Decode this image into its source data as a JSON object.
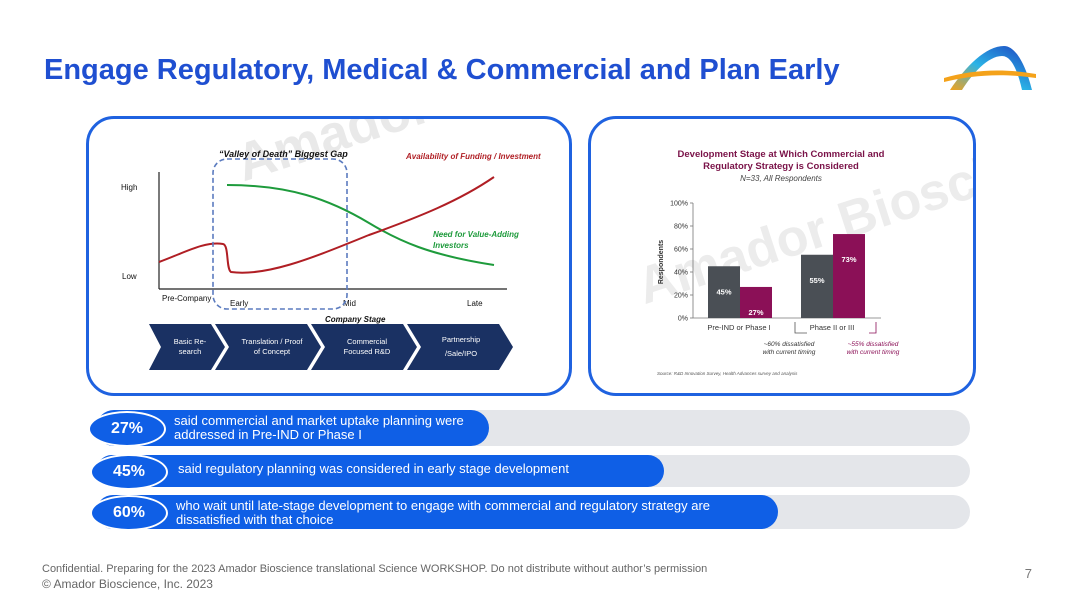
{
  "slide": {
    "title": "Engage Regulatory, Medical & Commercial and Plan Early",
    "page_number": "7",
    "watermark": "Amador Bioscience"
  },
  "left_chart": {
    "valley_label": "“Valley of Death” Biggest Gap",
    "funding_label": "Availability of Funding / Investment",
    "value_adding_label_1": "Need for Value-Adding",
    "value_adding_label_2": "Investors",
    "y_high": "High",
    "y_low": "Low",
    "x_pre": "Pre-Company",
    "x_early": "Early",
    "x_mid": "Mid",
    "x_late": "Late",
    "x_axis_label": "Company Stage",
    "stages": [
      {
        "line1": "Basic Re-",
        "line2": "search"
      },
      {
        "line1": "Translation / Proof",
        "line2": "of Concept"
      },
      {
        "line1": "Commercial",
        "line2": "Focused R&D"
      },
      {
        "line1": "Partnership",
        "line2": "/Sale/IPO"
      }
    ],
    "colors": {
      "funding": "#b01e24",
      "value": "#1e9b3c",
      "valley": "#5b7bbf",
      "arrow": "#1a3163"
    }
  },
  "chart_data": {
    "type": "bar",
    "title_line1": "Development Stage at Which Commercial and",
    "title_line2": "Regulatory Strategy is Considered",
    "subtitle": "N=33, All Respondents",
    "ylabel": "Respondents",
    "yticks": [
      "0%",
      "20%",
      "40%",
      "60%",
      "80%",
      "100%"
    ],
    "ylim": [
      0,
      100
    ],
    "categories": [
      "Pre-IND or Phase I",
      "Phase II or III"
    ],
    "series": [
      {
        "color": "#4a4f55",
        "values": [
          45,
          55
        ],
        "labels": [
          "45%",
          "55%"
        ]
      },
      {
        "color": "#8b1057",
        "values": [
          27,
          73
        ],
        "labels": [
          "27%",
          "73%"
        ]
      }
    ],
    "note_left_1": "~60% dissatisfied",
    "note_left_2": "with current timing",
    "note_right_1": "~55% dissatisfied",
    "note_right_2": "with current timing",
    "source": "Source: R&D Innovation Survey, Health Advances survey and analysis"
  },
  "stats": [
    {
      "pct": "27%",
      "fill": 0.45,
      "line1": "said commercial and market uptake planning were",
      "line2": "addressed in Pre-IND or Phase I"
    },
    {
      "pct": "45%",
      "fill": 0.65,
      "line1": "said regulatory planning was considered in early stage development",
      "line2": ""
    },
    {
      "pct": "60%",
      "fill": 0.78,
      "line1": "who wait until late-stage development to engage with commercial and regulatory strategy are",
      "line2": "dissatisfied with that choice"
    }
  ],
  "footer": {
    "line1_a": "Confidential.",
    "line1_b": " Preparing for the 2023 Amador Bioscience translational Science WORKSHOP. Do not distribute without author’s permission",
    "line2": "© Amador Bioscience, Inc. 2023"
  }
}
